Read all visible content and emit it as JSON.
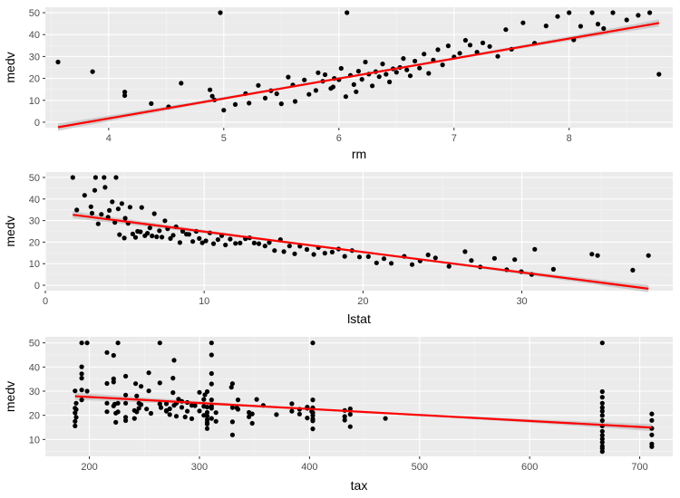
{
  "colors": {
    "panel_bg": "#ebebeb",
    "grid_major": "#ffffff",
    "grid_minor": "#f5f5f5",
    "point": "#000000",
    "fit_line": "#ff0000",
    "confidence_band": "#c8c8c8"
  },
  "chart_data": [
    {
      "type": "scatter",
      "xlabel": "rm",
      "ylabel": "medv",
      "xlim": [
        3.45,
        8.9
      ],
      "ylim": [
        -2.5,
        52.5
      ],
      "xticks": [
        4,
        5,
        6,
        7,
        8,
        9
      ],
      "yticks": [
        0,
        10,
        20,
        30,
        40,
        50
      ],
      "grid": true,
      "legend": "none",
      "fit": {
        "method": "linear",
        "x": [
          3.56,
          8.78
        ],
        "y": [
          -2.3,
          45.3
        ],
        "band": true
      },
      "points": [
        [
          3.56,
          27.5
        ],
        [
          3.86,
          23.1
        ],
        [
          4.14,
          13.8
        ],
        [
          4.14,
          12.2
        ],
        [
          4.37,
          8.5
        ],
        [
          4.52,
          7.0
        ],
        [
          4.63,
          17.8
        ],
        [
          4.88,
          14.8
        ],
        [
          4.97,
          50.0
        ],
        [
          4.9,
          11.9
        ],
        [
          4.92,
          10.2
        ],
        [
          5.0,
          5.5
        ],
        [
          5.1,
          8.1
        ],
        [
          5.19,
          13.1
        ],
        [
          5.3,
          16.8
        ],
        [
          5.41,
          14.4
        ],
        [
          5.46,
          13.0
        ],
        [
          5.5,
          8.4
        ],
        [
          5.56,
          20.6
        ],
        [
          5.62,
          9.5
        ],
        [
          5.7,
          19.3
        ],
        [
          5.74,
          12.7
        ],
        [
          5.8,
          14.5
        ],
        [
          5.82,
          22.6
        ],
        [
          5.86,
          18.7
        ],
        [
          5.88,
          21.7
        ],
        [
          5.93,
          15.4
        ],
        [
          5.96,
          20.0
        ],
        [
          6.0,
          19.4
        ],
        [
          6.02,
          24.6
        ],
        [
          6.06,
          11.7
        ],
        [
          6.1,
          21.4
        ],
        [
          6.13,
          17.2
        ],
        [
          6.17,
          23.3
        ],
        [
          6.2,
          19.6
        ],
        [
          6.23,
          27.5
        ],
        [
          6.26,
          22.0
        ],
        [
          6.29,
          16.6
        ],
        [
          6.32,
          23.1
        ],
        [
          6.35,
          20.8
        ],
        [
          6.38,
          26.6
        ],
        [
          6.41,
          21.9
        ],
        [
          6.44,
          18.4
        ],
        [
          6.47,
          24.4
        ],
        [
          6.5,
          22.8
        ],
        [
          6.53,
          25.0
        ],
        [
          6.56,
          29.1
        ],
        [
          6.59,
          23.9
        ],
        [
          6.62,
          21.2
        ],
        [
          6.66,
          27.9
        ],
        [
          6.7,
          24.7
        ],
        [
          6.74,
          31.1
        ],
        [
          6.78,
          22.3
        ],
        [
          6.82,
          28.4
        ],
        [
          6.86,
          33.1
        ],
        [
          6.9,
          26.2
        ],
        [
          6.95,
          34.9
        ],
        [
          7.0,
          29.8
        ],
        [
          7.05,
          31.5
        ],
        [
          7.1,
          37.4
        ],
        [
          7.14,
          35.2
        ],
        [
          7.2,
          32.0
        ],
        [
          7.25,
          36.2
        ],
        [
          7.31,
          34.6
        ],
        [
          7.38,
          30.1
        ],
        [
          7.45,
          42.3
        ],
        [
          7.5,
          33.3
        ],
        [
          7.6,
          45.4
        ],
        [
          7.7,
          36.1
        ],
        [
          7.8,
          44.0
        ],
        [
          7.9,
          48.3
        ],
        [
          8.0,
          50.0
        ],
        [
          8.04,
          37.6
        ],
        [
          8.1,
          43.8
        ],
        [
          8.2,
          50.0
        ],
        [
          8.25,
          44.8
        ],
        [
          8.3,
          42.8
        ],
        [
          8.38,
          50.0
        ],
        [
          8.5,
          46.7
        ],
        [
          8.6,
          48.8
        ],
        [
          8.7,
          50.0
        ],
        [
          8.78,
          21.9
        ],
        [
          6.07,
          50.0
        ],
        [
          5.22,
          8.7
        ],
        [
          5.36,
          11.0
        ],
        [
          5.6,
          17.0
        ],
        [
          5.95,
          16.1
        ],
        [
          6.15,
          13.9
        ]
      ]
    },
    {
      "type": "scatter",
      "xlabel": "lstat",
      "ylabel": "medv",
      "xlim": [
        0,
        39.5
      ],
      "ylim": [
        -2.5,
        52.5
      ],
      "xticks": [
        0,
        10,
        20,
        30
      ],
      "yticks": [
        0,
        10,
        20,
        30,
        40,
        50
      ],
      "grid": true,
      "legend": "none",
      "fit": {
        "method": "linear",
        "x": [
          1.73,
          37.97
        ],
        "y": [
          32.7,
          -1.6
        ],
        "band": true
      },
      "points": [
        [
          1.73,
          50.0
        ],
        [
          1.98,
          34.9
        ],
        [
          2.47,
          41.7
        ],
        [
          2.87,
          36.4
        ],
        [
          2.94,
          33.4
        ],
        [
          3.11,
          44.0
        ],
        [
          3.16,
          50.0
        ],
        [
          3.33,
          28.5
        ],
        [
          3.53,
          32.9
        ],
        [
          3.7,
          50.0
        ],
        [
          3.76,
          45.4
        ],
        [
          3.95,
          31.6
        ],
        [
          4.03,
          34.7
        ],
        [
          4.21,
          38.7
        ],
        [
          4.38,
          29.1
        ],
        [
          4.45,
          50.0
        ],
        [
          4.59,
          35.4
        ],
        [
          4.67,
          23.5
        ],
        [
          4.82,
          37.9
        ],
        [
          4.97,
          21.9
        ],
        [
          5.03,
          31.1
        ],
        [
          5.21,
          28.7
        ],
        [
          5.33,
          36.2
        ],
        [
          5.5,
          23.8
        ],
        [
          5.68,
          22.2
        ],
        [
          5.81,
          25.0
        ],
        [
          5.98,
          24.8
        ],
        [
          6.07,
          36.1
        ],
        [
          6.27,
          23.0
        ],
        [
          6.43,
          24.1
        ],
        [
          6.58,
          26.6
        ],
        [
          6.72,
          22.9
        ],
        [
          6.86,
          33.2
        ],
        [
          7.01,
          22.5
        ],
        [
          7.18,
          25.3
        ],
        [
          7.34,
          22.3
        ],
        [
          7.53,
          29.9
        ],
        [
          7.7,
          26.2
        ],
        [
          7.88,
          21.7
        ],
        [
          8.05,
          23.2
        ],
        [
          8.23,
          27.1
        ],
        [
          8.47,
          19.8
        ],
        [
          8.65,
          25.0
        ],
        [
          8.88,
          23.7
        ],
        [
          9.04,
          23.6
        ],
        [
          9.28,
          20.3
        ],
        [
          9.5,
          25.0
        ],
        [
          9.69,
          21.7
        ],
        [
          9.88,
          19.7
        ],
        [
          10.11,
          20.6
        ],
        [
          10.36,
          24.3
        ],
        [
          10.59,
          19.3
        ],
        [
          10.87,
          21.2
        ],
        [
          11.1,
          23.0
        ],
        [
          11.34,
          18.7
        ],
        [
          11.64,
          21.4
        ],
        [
          11.97,
          19.4
        ],
        [
          12.26,
          19.6
        ],
        [
          12.6,
          21.6
        ],
        [
          12.86,
          22.0
        ],
        [
          13.15,
          19.6
        ],
        [
          13.44,
          19.3
        ],
        [
          13.83,
          18.2
        ],
        [
          14.1,
          19.8
        ],
        [
          14.43,
          16.1
        ],
        [
          14.8,
          21.2
        ],
        [
          15.02,
          15.6
        ],
        [
          15.37,
          18.2
        ],
        [
          15.7,
          14.6
        ],
        [
          16.03,
          18.1
        ],
        [
          16.47,
          16.6
        ],
        [
          16.9,
          14.3
        ],
        [
          17.19,
          17.5
        ],
        [
          17.6,
          14.9
        ],
        [
          18.06,
          15.4
        ],
        [
          18.46,
          16.8
        ],
        [
          18.85,
          13.4
        ],
        [
          19.31,
          16.1
        ],
        [
          19.78,
          13.1
        ],
        [
          20.34,
          13.3
        ],
        [
          20.85,
          10.4
        ],
        [
          21.32,
          12.3
        ],
        [
          21.78,
          10.2
        ],
        [
          22.6,
          13.4
        ],
        [
          23.09,
          9.6
        ],
        [
          23.6,
          11.3
        ],
        [
          24.1,
          14.1
        ],
        [
          24.56,
          12.7
        ],
        [
          25.41,
          8.8
        ],
        [
          26.42,
          15.6
        ],
        [
          26.82,
          11.5
        ],
        [
          27.38,
          8.5
        ],
        [
          28.28,
          12.5
        ],
        [
          29.05,
          7.2
        ],
        [
          29.55,
          11.9
        ],
        [
          29.97,
          6.3
        ],
        [
          30.62,
          5.0
        ],
        [
          30.81,
          16.7
        ],
        [
          31.99,
          7.4
        ],
        [
          34.41,
          14.4
        ],
        [
          34.77,
          13.8
        ],
        [
          36.98,
          7.0
        ],
        [
          37.97,
          13.8
        ]
      ]
    },
    {
      "type": "scatter",
      "xlabel": "tax",
      "ylabel": "medv",
      "xlim": [
        160,
        730
      ],
      "ylim": [
        3,
        52.5
      ],
      "xticks": [
        200,
        300,
        400,
        500,
        600,
        700
      ],
      "yticks": [
        10,
        20,
        30,
        40,
        50
      ],
      "grid": true,
      "legend": "none",
      "fit": {
        "method": "linear",
        "x": [
          187,
          711
        ],
        "y": [
          27.9,
          14.9
        ],
        "band": true
      },
      "points": [
        [
          187,
          21.0
        ],
        [
          187,
          17.5
        ],
        [
          187,
          23.0
        ],
        [
          187,
          15.6
        ],
        [
          187,
          30.1
        ],
        [
          188,
          19.2
        ],
        [
          188,
          25.0
        ],
        [
          188,
          22.4
        ],
        [
          193,
          26.4
        ],
        [
          193,
          50.0
        ],
        [
          193,
          35.4
        ],
        [
          193,
          37.2
        ],
        [
          193,
          40.1
        ],
        [
          193,
          30.5
        ],
        [
          198,
          50.0
        ],
        [
          198,
          30.0
        ],
        [
          216,
          21.5
        ],
        [
          216,
          33.2
        ],
        [
          216,
          25.0
        ],
        [
          216,
          46.0
        ],
        [
          222,
          35.1
        ],
        [
          222,
          44.8
        ],
        [
          222,
          23.9
        ],
        [
          222,
          33.8
        ],
        [
          223,
          24.6
        ],
        [
          224,
          20.9
        ],
        [
          224,
          17.1
        ],
        [
          226,
          50.0
        ],
        [
          226,
          25.0
        ],
        [
          226,
          21.4
        ],
        [
          233,
          36.2
        ],
        [
          233,
          19.2
        ],
        [
          233,
          17.8
        ],
        [
          233,
          28.4
        ],
        [
          233,
          25.0
        ],
        [
          241,
          22.0
        ],
        [
          241,
          18.7
        ],
        [
          242,
          33.1
        ],
        [
          243,
          28.0
        ],
        [
          243,
          21.4
        ],
        [
          245,
          22.9
        ],
        [
          245,
          25.0
        ],
        [
          247,
          24.4
        ],
        [
          247,
          32.0
        ],
        [
          252,
          22.6
        ],
        [
          254,
          30.1
        ],
        [
          254,
          37.6
        ],
        [
          256,
          20.8
        ],
        [
          264,
          24.7
        ],
        [
          264,
          33.4
        ],
        [
          264,
          50.0
        ],
        [
          265,
          23.2
        ],
        [
          270,
          21.7
        ],
        [
          270,
          24.8
        ],
        [
          270,
          22.0
        ],
        [
          273,
          22.7
        ],
        [
          273,
          20.3
        ],
        [
          276,
          35.4
        ],
        [
          276,
          29.4
        ],
        [
          277,
          24.1
        ],
        [
          277,
          42.8
        ],
        [
          279,
          19.6
        ],
        [
          279,
          25.0
        ],
        [
          281,
          26.7
        ],
        [
          284,
          23.3
        ],
        [
          284,
          25.8
        ],
        [
          287,
          19.3
        ],
        [
          289,
          21.7
        ],
        [
          289,
          25.3
        ],
        [
          293,
          24.1
        ],
        [
          293,
          18.6
        ],
        [
          296,
          24.0
        ],
        [
          300,
          29.5
        ],
        [
          300,
          21.8
        ],
        [
          304,
          20.0
        ],
        [
          304,
          23.7
        ],
        [
          304,
          26.6
        ],
        [
          305,
          28.5
        ],
        [
          307,
          21.2
        ],
        [
          307,
          18.2
        ],
        [
          307,
          19.7
        ],
        [
          307,
          17.0
        ],
        [
          307,
          16.4
        ],
        [
          307,
          29.8
        ],
        [
          307,
          23.4
        ],
        [
          307,
          14.5
        ],
        [
          311,
          33.0
        ],
        [
          311,
          37.3
        ],
        [
          311,
          50.0
        ],
        [
          311,
          45.0
        ],
        [
          311,
          26.4
        ],
        [
          311,
          23.8
        ],
        [
          311,
          22.9
        ],
        [
          311,
          18.7
        ],
        [
          315,
          21.1
        ],
        [
          315,
          17.5
        ],
        [
          329,
          31.6
        ],
        [
          330,
          33.1
        ],
        [
          330,
          23.2
        ],
        [
          330,
          17.3
        ],
        [
          330,
          11.9
        ],
        [
          334,
          23.1
        ],
        [
          335,
          26.4
        ],
        [
          335,
          22.5
        ],
        [
          345,
          19.4
        ],
        [
          345,
          21.2
        ],
        [
          348,
          16.7
        ],
        [
          348,
          20.6
        ],
        [
          352,
          26.6
        ],
        [
          358,
          24.1
        ],
        [
          370,
          20.3
        ],
        [
          384,
          24.8
        ],
        [
          384,
          21.7
        ],
        [
          391,
          22.5
        ],
        [
          391,
          20.5
        ],
        [
          398,
          22.9
        ],
        [
          398,
          23.4
        ],
        [
          398,
          18.9
        ],
        [
          402,
          21.6
        ],
        [
          403,
          17.7
        ],
        [
          403,
          21.1
        ],
        [
          403,
          23.1
        ],
        [
          403,
          50.0
        ],
        [
          403,
          19.9
        ],
        [
          403,
          18.4
        ],
        [
          403,
          26.4
        ],
        [
          403,
          14.4
        ],
        [
          432,
          22.0
        ],
        [
          432,
          19.5
        ],
        [
          432,
          18.0
        ],
        [
          437,
          20.4
        ],
        [
          437,
          15.3
        ],
        [
          437,
          22.7
        ],
        [
          469,
          18.7
        ],
        [
          666,
          50.0
        ],
        [
          666,
          29.8
        ],
        [
          666,
          27.5
        ],
        [
          666,
          25.0
        ],
        [
          666,
          23.2
        ],
        [
          666,
          21.7
        ],
        [
          666,
          19.9
        ],
        [
          666,
          17.8
        ],
        [
          666,
          15.6
        ],
        [
          666,
          13.4
        ],
        [
          666,
          11.7
        ],
        [
          666,
          10.2
        ],
        [
          666,
          8.8
        ],
        [
          666,
          7.2
        ],
        [
          666,
          5.0
        ],
        [
          666,
          6.3
        ],
        [
          711,
          20.6
        ],
        [
          711,
          17.9
        ],
        [
          711,
          14.6
        ],
        [
          711,
          11.9
        ],
        [
          711,
          8.1
        ],
        [
          711,
          7.0
        ]
      ]
    }
  ]
}
